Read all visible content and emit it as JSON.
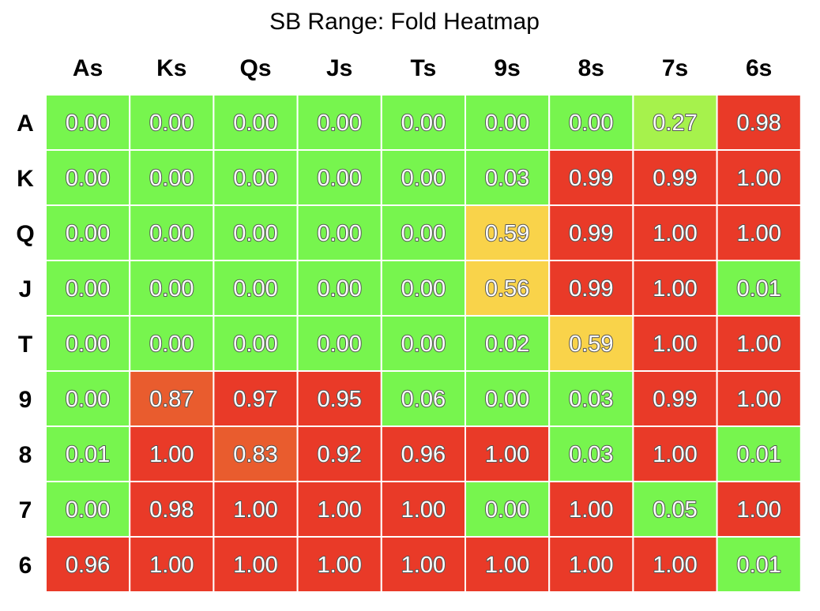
{
  "chart_data": {
    "type": "heatmap",
    "title": "SB Range: Fold Heatmap",
    "columns": [
      "As",
      "Ks",
      "Qs",
      "Js",
      "Ts",
      "9s",
      "8s",
      "7s",
      "6s"
    ],
    "rows": [
      "A",
      "K",
      "Q",
      "J",
      "T",
      "9",
      "8",
      "7",
      "6"
    ],
    "values": [
      [
        "0.00",
        "0.00",
        "0.00",
        "0.00",
        "0.00",
        "0.00",
        "0.00",
        "0.27",
        "0.98"
      ],
      [
        "0.00",
        "0.00",
        "0.00",
        "0.00",
        "0.00",
        "0.03",
        "0.99",
        "0.99",
        "1.00"
      ],
      [
        "0.00",
        "0.00",
        "0.00",
        "0.00",
        "0.00",
        "0.59",
        "0.99",
        "1.00",
        "1.00"
      ],
      [
        "0.00",
        "0.00",
        "0.00",
        "0.00",
        "0.00",
        "0.56",
        "0.99",
        "1.00",
        "0.01"
      ],
      [
        "0.00",
        "0.00",
        "0.00",
        "0.00",
        "0.00",
        "0.02",
        "0.59",
        "1.00",
        "1.00"
      ],
      [
        "0.00",
        "0.87",
        "0.97",
        "0.95",
        "0.06",
        "0.00",
        "0.03",
        "0.99",
        "1.00"
      ],
      [
        "0.01",
        "1.00",
        "0.83",
        "0.92",
        "0.96",
        "1.00",
        "0.03",
        "1.00",
        "0.01"
      ],
      [
        "0.00",
        "0.98",
        "1.00",
        "1.00",
        "1.00",
        "0.00",
        "1.00",
        "0.05",
        "1.00"
      ],
      [
        "0.96",
        "1.00",
        "1.00",
        "1.00",
        "1.00",
        "1.00",
        "1.00",
        "1.00",
        "0.01"
      ]
    ],
    "vmin": 0,
    "vmax": 1,
    "colors": {
      "low": "#77f54e",
      "low_mid": "#a6f24c",
      "mid": "#f9d34a",
      "high_mid": "#e95c2e",
      "high": "#e93a28",
      "cell_border": "#ffffff"
    },
    "grid": true,
    "legend": "none"
  }
}
